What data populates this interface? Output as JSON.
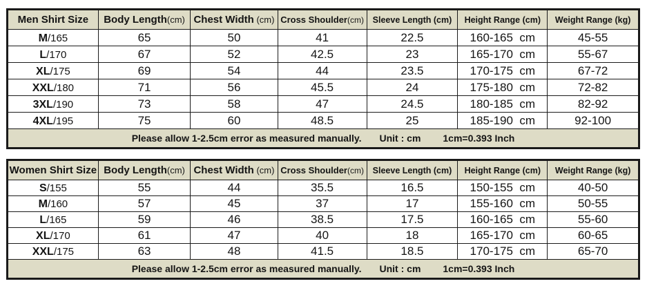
{
  "colors": {
    "header_bg": "#dedcc6",
    "border": "#1a1a1a",
    "text": "#141414",
    "row_bg": "#ffffff"
  },
  "chart_data": [
    {
      "type": "table",
      "title": "Men Shirt Size",
      "columns": [
        {
          "label": "Men Shirt Size",
          "unit": ""
        },
        {
          "label": "Body Length",
          "unit": "(cm)"
        },
        {
          "label": "Chest Width",
          "unit": " (cm)"
        },
        {
          "label": "Cross Shoulder",
          "unit": "(cm)"
        },
        {
          "label": "Sleeve Length (cm)",
          "unit": ""
        },
        {
          "label": "Height Range (cm)",
          "unit": ""
        },
        {
          "label": "Weight Range (kg)",
          "unit": ""
        }
      ],
      "rows": [
        [
          "M/165",
          "65",
          "50",
          "41",
          "22.5",
          "160-165  cm",
          "45-55"
        ],
        [
          "L/170",
          "67",
          "52",
          "42.5",
          "23",
          "165-170  cm",
          "55-67"
        ],
        [
          "XL/175",
          "69",
          "54",
          "44",
          "23.5",
          "170-175  cm",
          "67-72"
        ],
        [
          "XXL/180",
          "71",
          "56",
          "45.5",
          "24",
          "175-180  cm",
          "72-82"
        ],
        [
          "3XL/190",
          "73",
          "58",
          "47",
          "24.5",
          "180-185  cm",
          "82-92"
        ],
        [
          "4XL/195",
          "75",
          "60",
          "48.5",
          "25",
          "185-190  cm",
          "92-100"
        ]
      ],
      "footer": {
        "note": "Please allow 1-2.5cm error as measured manually.",
        "unit": "Unit : cm",
        "conversion": "1cm=0.393 Inch"
      }
    },
    {
      "type": "table",
      "title": "Women Shirt Size",
      "columns": [
        {
          "label": "Women Shirt Size",
          "unit": ""
        },
        {
          "label": "Body Length",
          "unit": "(cm)"
        },
        {
          "label": "Chest Width",
          "unit": " (cm)"
        },
        {
          "label": "Cross Shoulder",
          "unit": "(cm)"
        },
        {
          "label": "Sleeve Length (cm)",
          "unit": ""
        },
        {
          "label": "Height Range (cm)",
          "unit": ""
        },
        {
          "label": "Weight Range (kg)",
          "unit": ""
        }
      ],
      "rows": [
        [
          "S/155",
          "55",
          "44",
          "35.5",
          "16.5",
          "150-155  cm",
          "40-50"
        ],
        [
          "M/160",
          "57",
          "45",
          "37",
          "17",
          "155-160  cm",
          "50-55"
        ],
        [
          "L/165",
          "59",
          "46",
          "38.5",
          "17.5",
          "160-165  cm",
          "55-60"
        ],
        [
          "XL/170",
          "61",
          "47",
          "40",
          "18",
          "165-170  cm",
          "60-65"
        ],
        [
          "XXL/175",
          "63",
          "48",
          "41.5",
          "18.5",
          "170-175  cm",
          "65-70"
        ]
      ],
      "footer": {
        "note": "Please allow 1-2.5cm error as measured manually.",
        "unit": "Unit : cm",
        "conversion": "1cm=0.393 Inch"
      }
    }
  ]
}
